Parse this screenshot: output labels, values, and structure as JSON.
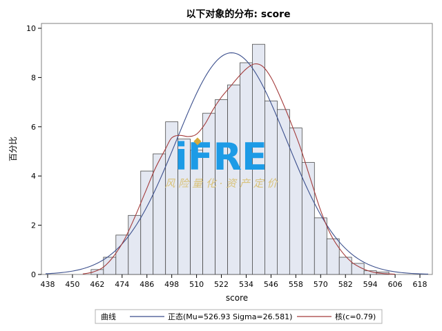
{
  "chart_data": {
    "type": "bar",
    "title": "以下对象的分布: score",
    "xlabel": "score",
    "ylabel": "百分比",
    "bin_width": 6,
    "xlim": [
      435,
      624
    ],
    "ylim": [
      0,
      10
    ],
    "x_ticks": [
      438,
      450,
      462,
      474,
      486,
      498,
      510,
      522,
      534,
      546,
      558,
      570,
      582,
      594,
      606,
      618
    ],
    "y_ticks": [
      0,
      2,
      4,
      6,
      8,
      10
    ],
    "bins": [
      {
        "center": 462,
        "value": 0.2
      },
      {
        "center": 468,
        "value": 0.7
      },
      {
        "center": 474,
        "value": 1.6
      },
      {
        "center": 480,
        "value": 2.4
      },
      {
        "center": 486,
        "value": 4.2
      },
      {
        "center": 492,
        "value": 4.9
      },
      {
        "center": 498,
        "value": 6.2
      },
      {
        "center": 504,
        "value": 5.5
      },
      {
        "center": 510,
        "value": 5.05
      },
      {
        "center": 516,
        "value": 6.55
      },
      {
        "center": 522,
        "value": 7.1
      },
      {
        "center": 528,
        "value": 7.7
      },
      {
        "center": 534,
        "value": 8.6
      },
      {
        "center": 540,
        "value": 9.35
      },
      {
        "center": 546,
        "value": 7.05
      },
      {
        "center": 552,
        "value": 6.7
      },
      {
        "center": 558,
        "value": 5.95
      },
      {
        "center": 564,
        "value": 4.55
      },
      {
        "center": 570,
        "value": 2.3
      },
      {
        "center": 576,
        "value": 1.45
      },
      {
        "center": 582,
        "value": 0.7
      },
      {
        "center": 588,
        "value": 0.45
      },
      {
        "center": 594,
        "value": 0.15
      },
      {
        "center": 600,
        "value": 0.1
      }
    ],
    "normal": {
      "mu": 526.93,
      "sigma": 26.581,
      "color": "#3a4e8c"
    },
    "kernel": {
      "color": "#a33a3a",
      "points": [
        [
          455,
          0.02
        ],
        [
          460,
          0.1
        ],
        [
          465,
          0.3
        ],
        [
          470,
          0.75
        ],
        [
          475,
          1.4
        ],
        [
          480,
          2.3
        ],
        [
          485,
          3.3
        ],
        [
          490,
          4.3
        ],
        [
          495,
          5.1
        ],
        [
          498,
          5.55
        ],
        [
          502,
          5.65
        ],
        [
          506,
          5.6
        ],
        [
          510,
          5.7
        ],
        [
          514,
          6.1
        ],
        [
          518,
          6.7
        ],
        [
          522,
          7.2
        ],
        [
          526,
          7.6
        ],
        [
          530,
          8.0
        ],
        [
          534,
          8.35
        ],
        [
          538,
          8.55
        ],
        [
          542,
          8.45
        ],
        [
          546,
          8.0
        ],
        [
          550,
          7.3
        ],
        [
          555,
          6.3
        ],
        [
          560,
          5.2
        ],
        [
          565,
          3.9
        ],
        [
          570,
          2.6
        ],
        [
          575,
          1.6
        ],
        [
          580,
          0.95
        ],
        [
          585,
          0.5
        ],
        [
          590,
          0.25
        ],
        [
          595,
          0.1
        ],
        [
          600,
          0.04
        ],
        [
          606,
          0.01
        ]
      ]
    },
    "fill_color": "#e4e8f2",
    "bar_stroke": "#4a4a4a",
    "legend": {
      "placement": "bottom",
      "title": "曲线",
      "entries": [
        {
          "label": "正态(Mu=526.93 Sigma=26.581)",
          "color": "#3a4e8c"
        },
        {
          "label": "核(c=0.79)",
          "color": "#a33a3a"
        }
      ]
    }
  },
  "watermark": {
    "logo": "iFRE",
    "subtitle": "风 险 量 化 · 资 产 定 价",
    "logo_color": "#1d9be6",
    "dot_color": "#d4a93a",
    "subtitle_color": "#d9c27a"
  }
}
